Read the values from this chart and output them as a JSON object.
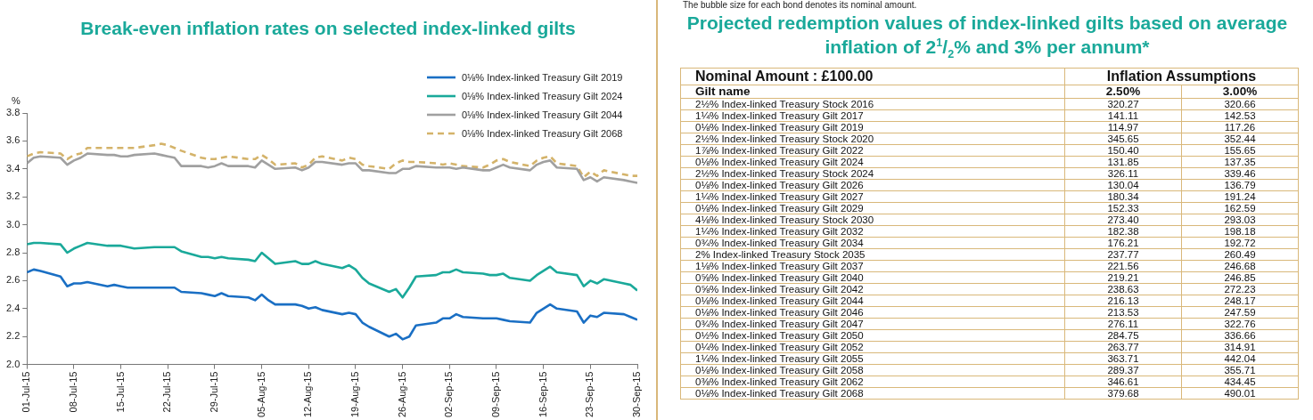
{
  "chart_data": [
    {
      "type": "line",
      "title": "Break-even inflation rates on selected index-linked gilts",
      "ylabel": "%",
      "x": [
        "--07-01",
        "--07-02",
        "--07-03",
        "--07-06",
        "--07-07",
        "--07-08",
        "--07-09",
        "--07-10",
        "--07-13",
        "--07-14",
        "--07-15",
        "--07-16",
        "--07-17",
        "--07-20",
        "--07-21",
        "--07-22",
        "--07-23",
        "--07-24",
        "--07-27",
        "--07-28",
        "--07-29",
        "--07-30",
        "--07-31",
        "--08-03",
        "--08-04",
        "--08-05",
        "--08-06",
        "--08-07",
        "--08-10",
        "--08-11",
        "--08-12",
        "--08-13",
        "--08-14",
        "--08-17",
        "--08-18",
        "--08-19",
        "--08-20",
        "--08-21",
        "--08-24",
        "--08-25",
        "--08-26",
        "--08-27",
        "--08-28",
        "--08-31",
        "--09-01",
        "--09-02",
        "--09-03",
        "--09-04",
        "--09-07",
        "--09-08",
        "--09-09",
        "--09-10",
        "--09-11",
        "--09-14",
        "--09-15",
        "--09-16",
        "--09-17",
        "--09-18",
        "--09-21",
        "--09-22",
        "--09-23",
        "--09-24",
        "--09-25",
        "--09-28",
        "--09-29",
        "--09-30"
      ],
      "series": [
        {
          "name": "0⅛% Index-linked Treasury Gilt 2019",
          "color": "#1a6fc4",
          "line_style": "solid",
          "values": [
            2.66,
            2.68,
            2.67,
            2.63,
            2.56,
            2.58,
            2.58,
            2.59,
            2.56,
            2.57,
            2.56,
            2.55,
            2.55,
            2.55,
            2.55,
            2.55,
            2.55,
            2.52,
            2.51,
            2.5,
            2.49,
            2.51,
            2.49,
            2.48,
            2.46,
            2.5,
            2.46,
            2.43,
            2.43,
            2.42,
            2.4,
            2.41,
            2.39,
            2.36,
            2.37,
            2.36,
            2.3,
            2.27,
            2.2,
            2.22,
            2.18,
            2.2,
            2.28,
            2.3,
            2.33,
            2.33,
            2.36,
            2.34,
            2.33,
            2.33,
            2.33,
            2.32,
            2.31,
            2.3,
            2.37,
            2.4,
            2.43,
            2.4,
            2.38,
            2.3,
            2.35,
            2.34,
            2.37,
            2.36,
            2.34,
            2.32
          ]
        },
        {
          "name": "0⅛% Index-linked Treasury Gilt 2024",
          "color": "#1aa99a",
          "line_style": "solid",
          "values": [
            2.86,
            2.87,
            2.87,
            2.86,
            2.8,
            2.83,
            2.85,
            2.87,
            2.85,
            2.85,
            2.85,
            2.84,
            2.83,
            2.84,
            2.84,
            2.84,
            2.84,
            2.81,
            2.77,
            2.77,
            2.76,
            2.77,
            2.76,
            2.75,
            2.74,
            2.8,
            2.76,
            2.72,
            2.74,
            2.72,
            2.72,
            2.74,
            2.72,
            2.69,
            2.71,
            2.68,
            2.62,
            2.58,
            2.52,
            2.54,
            2.48,
            2.55,
            2.63,
            2.64,
            2.66,
            2.66,
            2.68,
            2.66,
            2.65,
            2.64,
            2.64,
            2.65,
            2.62,
            2.6,
            2.64,
            2.67,
            2.7,
            2.66,
            2.64,
            2.56,
            2.6,
            2.58,
            2.61,
            2.58,
            2.57,
            2.53
          ]
        },
        {
          "name": "0⅛% Index-linked Treasury Gilt 2044",
          "color": "#a0a0a0",
          "line_style": "solid",
          "values": [
            3.44,
            3.48,
            3.49,
            3.48,
            3.43,
            3.46,
            3.48,
            3.51,
            3.5,
            3.5,
            3.49,
            3.49,
            3.5,
            3.51,
            3.5,
            3.49,
            3.48,
            3.42,
            3.42,
            3.41,
            3.42,
            3.44,
            3.42,
            3.42,
            3.41,
            3.46,
            3.43,
            3.4,
            3.41,
            3.39,
            3.41,
            3.45,
            3.45,
            3.43,
            3.44,
            3.44,
            3.39,
            3.39,
            3.37,
            3.37,
            3.4,
            3.4,
            3.42,
            3.41,
            3.41,
            3.41,
            3.4,
            3.41,
            3.39,
            3.39,
            3.41,
            3.43,
            3.41,
            3.39,
            3.43,
            3.45,
            3.46,
            3.41,
            3.4,
            3.32,
            3.34,
            3.31,
            3.34,
            3.32,
            3.31,
            3.3
          ]
        },
        {
          "name": "0⅛% Index-linked Treasury Gilt 2068",
          "color": "#d4b36a",
          "line_style": "dashed",
          "values": [
            3.49,
            3.51,
            3.52,
            3.51,
            3.47,
            3.5,
            3.51,
            3.55,
            3.55,
            3.55,
            3.55,
            3.55,
            3.55,
            3.57,
            3.58,
            3.57,
            3.55,
            3.53,
            3.48,
            3.47,
            3.47,
            3.48,
            3.49,
            3.47,
            3.47,
            3.5,
            3.47,
            3.43,
            3.44,
            3.41,
            3.43,
            3.48,
            3.49,
            3.46,
            3.48,
            3.47,
            3.43,
            3.42,
            3.4,
            3.44,
            3.46,
            3.45,
            3.45,
            3.44,
            3.43,
            3.44,
            3.43,
            3.42,
            3.41,
            3.43,
            3.46,
            3.47,
            3.45,
            3.42,
            3.46,
            3.48,
            3.49,
            3.44,
            3.42,
            3.34,
            3.38,
            3.35,
            3.39,
            3.36,
            3.35,
            3.35
          ]
        }
      ],
      "xlim": [
        "--07-01",
        "--09-30"
      ],
      "xticks": [
        {
          "value": "--07-01",
          "label": "01-Jul-15"
        },
        {
          "value": "--07-08",
          "label": "08-Jul-15"
        },
        {
          "value": "--07-15",
          "label": "15-Jul-15"
        },
        {
          "value": "--07-22",
          "label": "22-Jul-15"
        },
        {
          "value": "--07-29",
          "label": "29-Jul-15"
        },
        {
          "value": "--08-05",
          "label": "05-Aug-15"
        },
        {
          "value": "--08-12",
          "label": "12-Aug-15"
        },
        {
          "value": "--08-19",
          "label": "19-Aug-15"
        },
        {
          "value": "--08-26",
          "label": "26-Aug-15"
        },
        {
          "value": "--09-02",
          "label": "02-Sep-15"
        },
        {
          "value": "--09-09",
          "label": "09-Sep-15"
        },
        {
          "value": "--09-16",
          "label": "16-Sep-15"
        },
        {
          "value": "--09-23",
          "label": "23-Sep-15"
        },
        {
          "value": "--09-30",
          "label": "30-Sep-15"
        }
      ],
      "ylim": [
        2.0,
        3.8
      ],
      "yticks": [
        {
          "value": 2.0,
          "label": "2.0"
        },
        {
          "value": 2.2,
          "label": "2.2"
        },
        {
          "value": 2.4,
          "label": "2.4"
        },
        {
          "value": 2.6,
          "label": "2.6"
        },
        {
          "value": 2.8,
          "label": "2.8"
        },
        {
          "value": 3.0,
          "label": "3.0"
        },
        {
          "value": 3.2,
          "label": "3.2"
        },
        {
          "value": 3.4,
          "label": "3.4"
        },
        {
          "value": 3.6,
          "label": "3.6"
        },
        {
          "value": 3.8,
          "label": "3.8"
        }
      ],
      "grid": false,
      "legend": "top right",
      "marker": "none"
    },
    {
      "type": "other",
      "title": "Projected redemption values of index-linked gilts based on average inflation of 2$^{1}$/$_{2}$% and 3% per annum*",
      "annotations": [
        "The bubble size for each bond denotes its nominal amount.",
        "Nominal Amount : £100.00",
        "Inflation Assumptions",
        "Gilt name"
      ],
      "categories": [
        "2½% Index-linked Treasury Stock 2016",
        "1¼% Index-linked Treasury Gilt 2017",
        "0⅛% Index-linked Treasury Gilt 2019",
        "2½% Index-linked Treasury Stock 2020",
        "1⅞% Index-linked Treasury Gilt 2022",
        "0⅛% Index-linked Treasury Gilt 2024",
        "2½% Index-linked Treasury Stock 2024",
        "0⅛% Index-linked Treasury Gilt 2026",
        "1¼% Index-linked Treasury Gilt 2027",
        "0⅛% Index-linked Treasury Gilt 2029",
        "4⅛% Index-linked Treasury Stock 2030",
        "1¼% Index-linked Treasury Gilt 2032",
        "0¾% Index-linked Treasury Gilt 2034",
        "2% Index-linked Treasury Stock 2035",
        "1⅛% Index-linked Treasury Gilt 2037",
        "0⅝% Index-linked Treasury Gilt 2040",
        "0⅝% Index-linked Treasury Gilt 2042",
        "0⅛% Index-linked Treasury Gilt 2044",
        "0⅛% Index-linked Treasury Gilt 2046",
        "0¾% Index-linked Treasury Gilt 2047",
        "0½% Index-linked Treasury Gilt 2050",
        "0¼% Index-linked Treasury Gilt 2052",
        "1¼% Index-linked Treasury Gilt 2055",
        "0⅛% Index-linked Treasury Gilt 2058",
        "0⅜% Index-linked Treasury Gilt 2062",
        "0⅛% Index-linked Treasury Gilt 2068"
      ],
      "series": [
        {
          "name": "2.50%",
          "values": [
            320.27,
            141.11,
            114.97,
            345.65,
            150.4,
            131.85,
            326.11,
            130.04,
            180.34,
            152.33,
            273.4,
            182.38,
            176.21,
            237.77,
            221.56,
            219.21,
            238.63,
            216.13,
            213.53,
            276.11,
            284.75,
            263.77,
            363.71,
            289.37,
            346.61,
            379.68
          ],
          "value_labels": [
            "320.27",
            "141.11",
            "114.97",
            "345.65",
            "150.40",
            "131.85",
            "326.11",
            "130.04",
            "180.34",
            "152.33",
            "273.40",
            "182.38",
            "176.21",
            "237.77",
            "221.56",
            "219.21",
            "238.63",
            "216.13",
            "213.53",
            "276.11",
            "284.75",
            "263.77",
            "363.71",
            "289.37",
            "346.61",
            "379.68"
          ]
        },
        {
          "name": "3.00%",
          "values": [
            320.66,
            142.53,
            117.26,
            352.44,
            155.65,
            137.35,
            339.46,
            136.79,
            191.24,
            162.59,
            293.03,
            198.18,
            192.72,
            260.49,
            246.68,
            246.85,
            272.23,
            248.17,
            247.59,
            322.76,
            336.66,
            314.91,
            442.04,
            355.71,
            434.45,
            490.01
          ],
          "value_labels": [
            "320.66",
            "142.53",
            "117.26",
            "352.44",
            "155.65",
            "137.35",
            "339.46",
            "136.79",
            "191.24",
            "162.59",
            "293.03",
            "198.18",
            "192.72",
            "260.49",
            "246.68",
            "246.85",
            "272.23",
            "248.17",
            "247.59",
            "322.76",
            "336.66",
            "314.91",
            "442.04",
            "355.71",
            "434.45",
            "490.01"
          ]
        }
      ]
    }
  ]
}
